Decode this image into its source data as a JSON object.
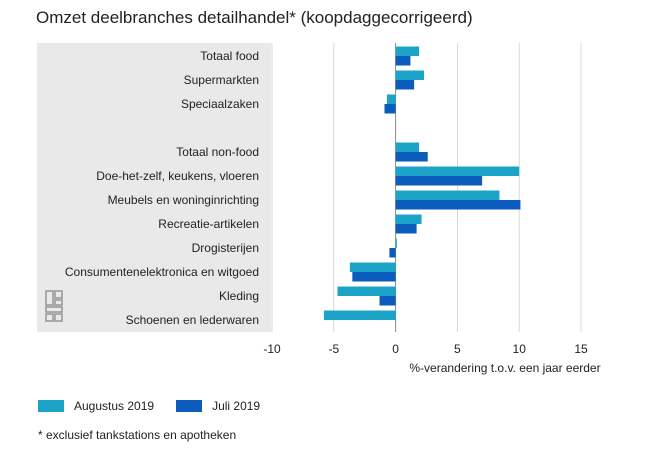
{
  "title": "Omzet deelbranches detailhandel* (koopdaggecorrigeerd)",
  "footnote": "* exclusief tankstations en apotheken",
  "colors": {
    "augustus": "#1ba3c8",
    "juli": "#0b5cbd",
    "panel": "#e9e9e9",
    "logo": "#9a9a9a"
  },
  "logo_icon": "cbs-logo-icon",
  "chart_data": {
    "type": "bar",
    "orientation": "horizontal",
    "categories": [
      "Totaal food",
      "Supermarkten",
      "Speciaalzaken",
      "",
      "Totaal non-food",
      "Doe-het-zelf, keukens, vloeren",
      "Meubels en woninginrichting",
      "Recreatie-artikelen",
      "Drogisterijen",
      "Consumentenelektronica en witgoed",
      "Kleding",
      "Schoenen en lederwaren"
    ],
    "series": [
      {
        "name": "Augustus 2019",
        "values": [
          1.9,
          2.3,
          -0.7,
          null,
          1.9,
          10.0,
          8.4,
          2.1,
          0.1,
          -3.7,
          -4.7,
          -5.8
        ]
      },
      {
        "name": "Juli 2019",
        "values": [
          1.2,
          1.5,
          -0.9,
          null,
          2.6,
          7.0,
          10.1,
          1.7,
          -0.5,
          -3.5,
          -1.3,
          null
        ]
      }
    ],
    "xlabel": "%-verandering t.o.v. een jaar eerder",
    "ylabel": "",
    "xlim": [
      -10,
      15
    ],
    "xticks": [
      -10,
      -5,
      0,
      5,
      10,
      15
    ],
    "grid": true,
    "legend_position": "bottom-left"
  }
}
